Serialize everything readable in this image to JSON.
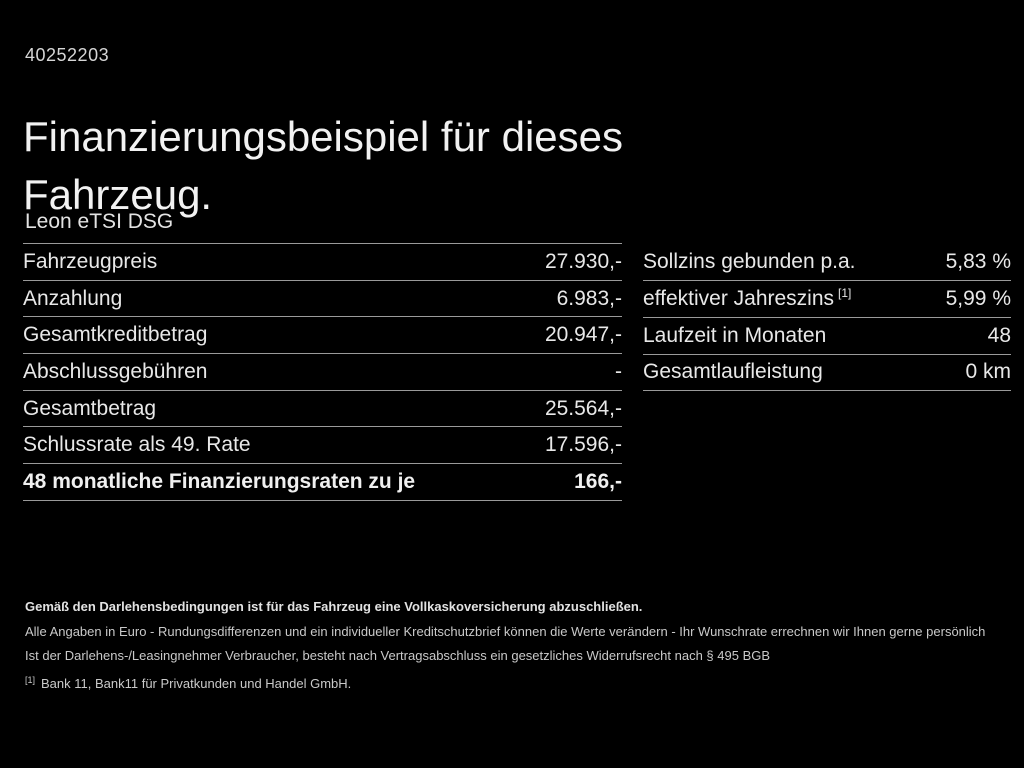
{
  "page": {
    "ref_number": "40252203",
    "title": "Finanzierungsbeispiel für dieses Fahrzeug.",
    "vehicle_model": "Leon eTSI DSG"
  },
  "finance_table": {
    "rows": [
      {
        "label": "Fahrzeugpreis",
        "value": "27.930,-"
      },
      {
        "label": "Anzahlung",
        "value": "6.983,-"
      },
      {
        "label": "Gesamtkreditbetrag",
        "value": "20.947,-"
      },
      {
        "label": "Abschlussgebühren",
        "value": "-"
      },
      {
        "label": "Gesamtbetrag",
        "value": "25.564,-"
      },
      {
        "label": "Schlussrate als 49. Rate",
        "value": "17.596,-"
      },
      {
        "label": "48 monatliche Finanzierungsraten zu je",
        "value": "166,-"
      }
    ]
  },
  "conditions_table": {
    "rows": [
      {
        "label": "Sollzins gebunden p.a.",
        "value": "5,83 %"
      },
      {
        "label": "effektiver Jahreszins",
        "footnote": "[1]",
        "value": "5,99 %"
      },
      {
        "label": "Laufzeit in Monaten",
        "value": "48"
      },
      {
        "label": "Gesamtlaufleistung",
        "value": "0 km"
      }
    ]
  },
  "footer": {
    "line1": "Gemäß den Darlehensbedingungen ist für das Fahrzeug eine Vollkaskoversicherung abzuschließen.",
    "line2": "Alle Angaben in Euro - Rundungsdifferenzen und ein individueller Kreditschutzbrief können die Werte verändern - Ihr Wunschrate errechnen wir Ihnen gerne persönlich",
    "line3": "Ist der Darlehens-/Leasingnehmer Verbraucher, besteht nach Vertragsabschluss ein gesetzliches Widerrufsrecht nach § 495 BGB",
    "footnote_marker": "[1]",
    "footnote_text": "Bank 11, Bank11 für Privatkunden und Handel GmbH."
  },
  "colors": {
    "background": "#000000",
    "text": "#e8e8e8",
    "divider": "#9a9a9a"
  }
}
